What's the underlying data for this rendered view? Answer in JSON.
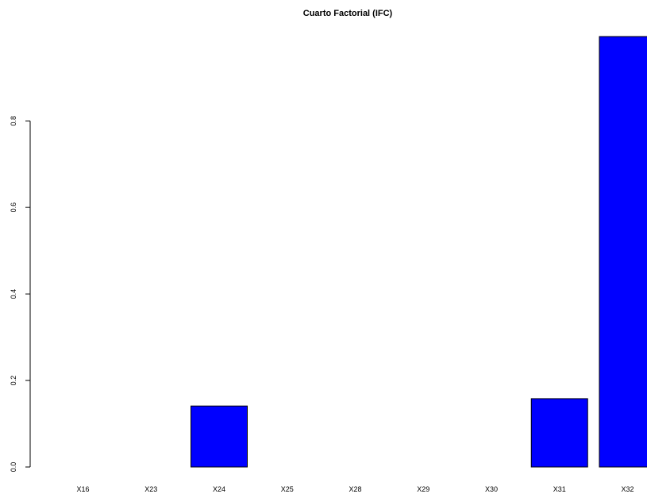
{
  "chart_data": {
    "type": "bar",
    "title": "Cuarto Factorial (IFC)",
    "xlabel": "",
    "ylabel": "",
    "categories": [
      "X16",
      "X23",
      "X24",
      "X25",
      "X28",
      "X29",
      "X30",
      "X31",
      "X32"
    ],
    "values": [
      0,
      0,
      0.141,
      0,
      0,
      0,
      0,
      0.158,
      0.995
    ],
    "ylim": [
      0,
      0.995
    ],
    "yticks": [
      0.0,
      0.2,
      0.4,
      0.6,
      0.8
    ],
    "ytick_labels": [
      "0.0",
      "0.2",
      "0.4",
      "0.6",
      "0.8"
    ],
    "bar_color": "#0000ff",
    "grid": false,
    "legend": "none"
  }
}
